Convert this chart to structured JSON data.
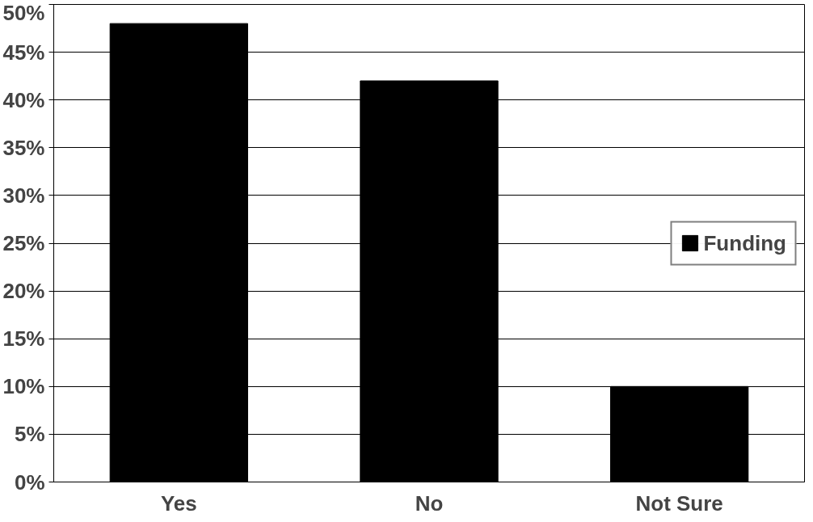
{
  "chart_data": {
    "type": "bar",
    "categories": [
      "Yes",
      "No",
      "Not Sure"
    ],
    "series": [
      {
        "name": "Funding",
        "color": "#000000",
        "values": [
          48,
          42,
          10
        ]
      }
    ],
    "ylim": [
      0,
      50
    ],
    "yticks": [
      {
        "value": 0,
        "label": "0%"
      },
      {
        "value": 5,
        "label": "5%"
      },
      {
        "value": 10,
        "label": "10%"
      },
      {
        "value": 15,
        "label": "15%"
      },
      {
        "value": 20,
        "label": "20%"
      },
      {
        "value": 25,
        "label": "25%"
      },
      {
        "value": 30,
        "label": "30%"
      },
      {
        "value": 35,
        "label": "35%"
      },
      {
        "value": 40,
        "label": "40%"
      },
      {
        "value": 45,
        "label": "45%"
      },
      {
        "value": 50,
        "label": "50%"
      }
    ],
    "grid": "y",
    "legend": "right"
  }
}
